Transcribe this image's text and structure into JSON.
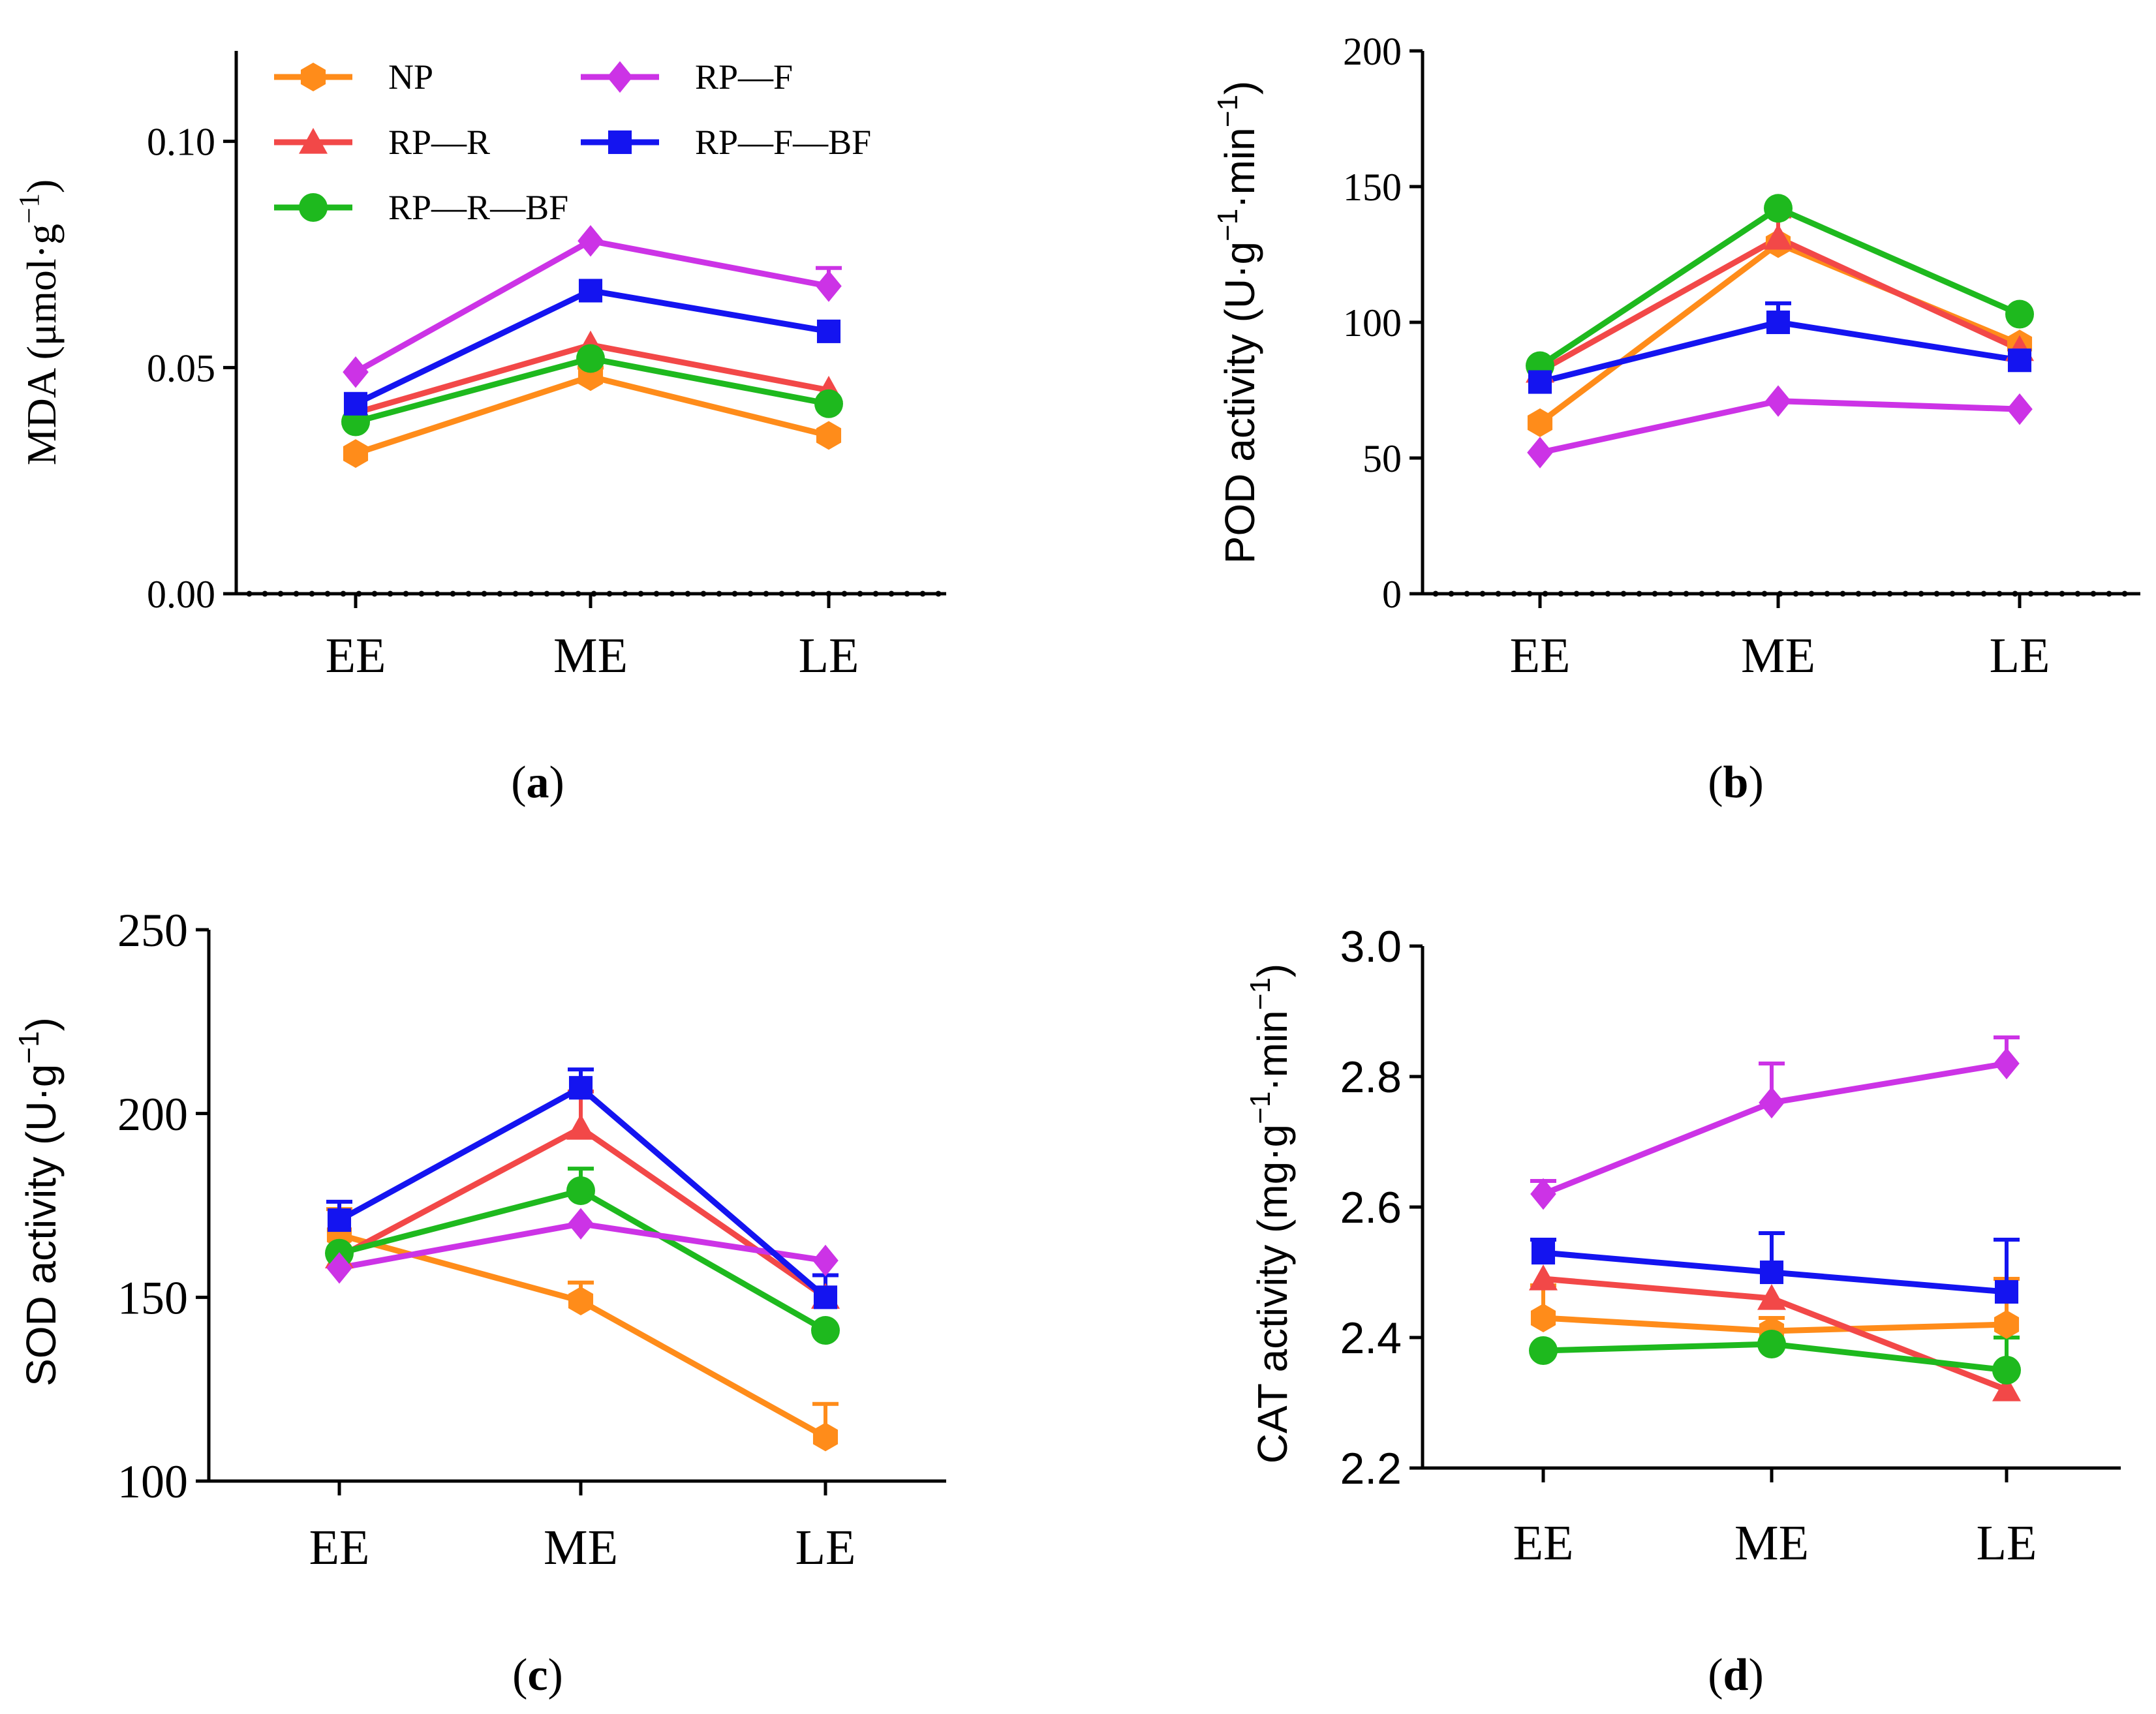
{
  "colors": {
    "NP": "#FF8C1A",
    "RP—R": "#F24848",
    "RP—R—BF": "#1EB91E",
    "RP—F": "#CC33E6",
    "RP—F—BF": "#1414F0"
  },
  "legend": [
    "NP",
    "RP—R",
    "RP—R—BF",
    "RP—F",
    "RP—F—BF"
  ],
  "chart_data": [
    {
      "id": "a",
      "type": "line",
      "panel_label": "a",
      "title": "",
      "categories": [
        "EE",
        "ME",
        "LE"
      ],
      "ylabel": "MDA (μmol·g",
      "ylabel_sup": "−1",
      "ylabel_tail": ")",
      "ylim": [
        0,
        0.12
      ],
      "yticks": [
        0.0,
        0.05,
        0.1
      ],
      "ytick_labels": [
        "0.00",
        "0.05",
        "0.10"
      ],
      "tick_font": "serif",
      "series": [
        {
          "name": "NP",
          "marker": "hexagon",
          "values": [
            0.031,
            0.048,
            0.035
          ],
          "errors": [
            0,
            0.002,
            0
          ]
        },
        {
          "name": "RP—R",
          "marker": "triangle",
          "values": [
            0.04,
            0.055,
            0.045
          ],
          "errors": [
            0,
            0,
            0
          ]
        },
        {
          "name": "RP—R—BF",
          "marker": "circle",
          "values": [
            0.038,
            0.052,
            0.042
          ],
          "errors": [
            0,
            0.001,
            0
          ]
        },
        {
          "name": "RP—F",
          "marker": "diamond",
          "values": [
            0.049,
            0.078,
            0.068
          ],
          "errors": [
            0,
            0,
            0.004
          ]
        },
        {
          "name": "RP—F—BF",
          "marker": "square",
          "values": [
            0.042,
            0.067,
            0.058
          ],
          "errors": [
            0,
            0,
            0
          ]
        }
      ]
    },
    {
      "id": "b",
      "type": "line",
      "panel_label": "b",
      "title": "",
      "categories": [
        "EE",
        "ME",
        "LE"
      ],
      "ylabel": "POD activity (U·g",
      "ylabel_sup": "−1",
      "ylabel_mid": "·min",
      "ylabel_sup2": "−1",
      "ylabel_tail": ")",
      "ylim": [
        0,
        200
      ],
      "yticks": [
        0,
        50,
        100,
        150,
        200
      ],
      "ytick_labels": [
        "0",
        "50",
        "100",
        "150",
        "200"
      ],
      "tick_font": "serif",
      "series": [
        {
          "name": "NP",
          "marker": "hexagon",
          "values": [
            63,
            129,
            92
          ],
          "errors": [
            0,
            0,
            0
          ]
        },
        {
          "name": "RP—R",
          "marker": "triangle",
          "values": [
            82,
            131,
            90
          ],
          "errors": [
            0,
            8,
            0
          ]
        },
        {
          "name": "RP—R—BF",
          "marker": "circle",
          "values": [
            84,
            142,
            103
          ],
          "errors": [
            0,
            0,
            0
          ]
        },
        {
          "name": "RP—F",
          "marker": "diamond",
          "values": [
            52,
            71,
            68
          ],
          "errors": [
            0,
            0,
            0
          ]
        },
        {
          "name": "RP—F—BF",
          "marker": "square",
          "values": [
            78,
            100,
            86
          ],
          "errors": [
            0,
            7,
            0
          ]
        }
      ]
    },
    {
      "id": "c",
      "type": "line",
      "panel_label": "c",
      "title": "",
      "categories": [
        "EE",
        "ME",
        "LE"
      ],
      "ylabel": "SOD activity (U·g",
      "ylabel_sup": "−1",
      "ylabel_tail": ")",
      "ylim": [
        100,
        250
      ],
      "yticks": [
        100,
        150,
        200,
        250
      ],
      "ytick_labels": [
        "100",
        "150",
        "200",
        "250"
      ],
      "tick_font": "serif",
      "series": [
        {
          "name": "NP",
          "marker": "hexagon",
          "values": [
            167,
            149,
            112
          ],
          "errors": [
            7,
            5,
            9
          ]
        },
        {
          "name": "RP—R",
          "marker": "triangle",
          "values": [
            161,
            196,
            150
          ],
          "errors": [
            0,
            10,
            0
          ]
        },
        {
          "name": "RP—R—BF",
          "marker": "circle",
          "values": [
            162,
            179,
            141
          ],
          "errors": [
            0,
            6,
            0
          ]
        },
        {
          "name": "RP—F",
          "marker": "diamond",
          "values": [
            158,
            170,
            160
          ],
          "errors": [
            0,
            0,
            0
          ]
        },
        {
          "name": "RP—F—BF",
          "marker": "square",
          "values": [
            171,
            207,
            150
          ],
          "errors": [
            5,
            5,
            6
          ]
        }
      ]
    },
    {
      "id": "d",
      "type": "line",
      "panel_label": "d",
      "title": "",
      "categories": [
        "EE",
        "ME",
        "LE"
      ],
      "ylabel": "CAT activity (mg·g",
      "ylabel_sup": "−1",
      "ylabel_mid": "·min",
      "ylabel_sup2": "−1",
      "ylabel_tail": ")",
      "ylim": [
        2.2,
        3.0
      ],
      "yticks": [
        2.2,
        2.4,
        2.6,
        2.8,
        3.0
      ],
      "ytick_labels": [
        "2.2",
        "2.4",
        "2.6",
        "2.8",
        "3.0"
      ],
      "tick_font": "sans",
      "series": [
        {
          "name": "NP",
          "marker": "hexagon",
          "values": [
            2.43,
            2.41,
            2.42
          ],
          "errors": [
            0.05,
            0.02,
            0.07
          ]
        },
        {
          "name": "RP—R",
          "marker": "triangle",
          "values": [
            2.49,
            2.46,
            2.32
          ],
          "errors": [
            0,
            0,
            0
          ]
        },
        {
          "name": "RP—R—BF",
          "marker": "circle",
          "values": [
            2.38,
            2.39,
            2.35
          ],
          "errors": [
            0,
            0,
            0.05
          ]
        },
        {
          "name": "RP—F",
          "marker": "diamond",
          "values": [
            2.62,
            2.76,
            2.82
          ],
          "errors": [
            0.02,
            0.06,
            0.04
          ]
        },
        {
          "name": "RP—F—BF",
          "marker": "square",
          "values": [
            2.53,
            2.5,
            2.47
          ],
          "errors": [
            0.02,
            0.06,
            0.08
          ]
        }
      ]
    }
  ]
}
